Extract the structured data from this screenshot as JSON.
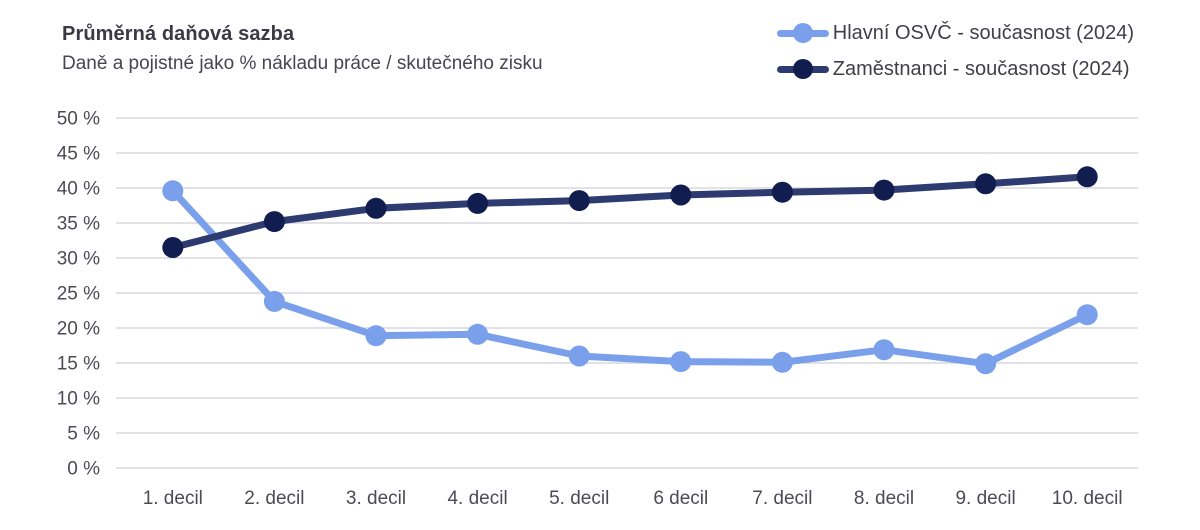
{
  "header": {
    "title": "Průměrná daňová sazba",
    "subtitle": "Daně a pojistné jako % nákladu práce / skutečného zisku"
  },
  "colors": {
    "grid": "#d9d9dd",
    "axis_text": "#4b4b55",
    "title_text": "#3a3a44",
    "osvc_blue": "#7ba0eb",
    "zamestnanci_line": "#2e3b70",
    "zamestnanci_marker": "#121d4f"
  },
  "chart_data": {
    "type": "line",
    "title": "Průměrná daňová sazba",
    "subtitle": "Daně a pojistné jako % nákladu práce / skutečného zisku",
    "xlabel": "",
    "ylabel": "",
    "categories": [
      "1. decil",
      "2. decil",
      "3. decil",
      "4. decil",
      "5. decil",
      "6 decil",
      "7. decil",
      "8. decil",
      "9. decil",
      "10. decil"
    ],
    "series": [
      {
        "id": "hlavni-osvc",
        "name": "Hlavní OSVČ - současnost (2024)",
        "color": "#7ba0eb",
        "marker_color": "#7ba0eb",
        "values": [
          39.6,
          23.8,
          18.9,
          19.1,
          16.0,
          15.2,
          15.1,
          16.9,
          14.9,
          21.9
        ]
      },
      {
        "id": "zamestnanci",
        "name": "Zaměstnanci - současnost (2024)",
        "color": "#2e3b70",
        "marker_color": "#121d4f",
        "values": [
          31.5,
          35.2,
          37.1,
          37.8,
          38.2,
          39.0,
          39.4,
          39.7,
          40.6,
          41.6
        ]
      }
    ],
    "ylim": [
      0,
      50
    ],
    "ytick_step": 5,
    "yticks": [
      {
        "value": 0,
        "label": "0 %"
      },
      {
        "value": 5,
        "label": "5 %"
      },
      {
        "value": 10,
        "label": "10 %"
      },
      {
        "value": 15,
        "label": "15 %"
      },
      {
        "value": 20,
        "label": "20 %"
      },
      {
        "value": 25,
        "label": "25 %"
      },
      {
        "value": 30,
        "label": "30 %"
      },
      {
        "value": 35,
        "label": "35 %"
      },
      {
        "value": 40,
        "label": "40 %"
      },
      {
        "value": 45,
        "label": "45 %"
      },
      {
        "value": 50,
        "label": "50 %"
      }
    ],
    "grid": true,
    "legend_position": "top-right"
  }
}
